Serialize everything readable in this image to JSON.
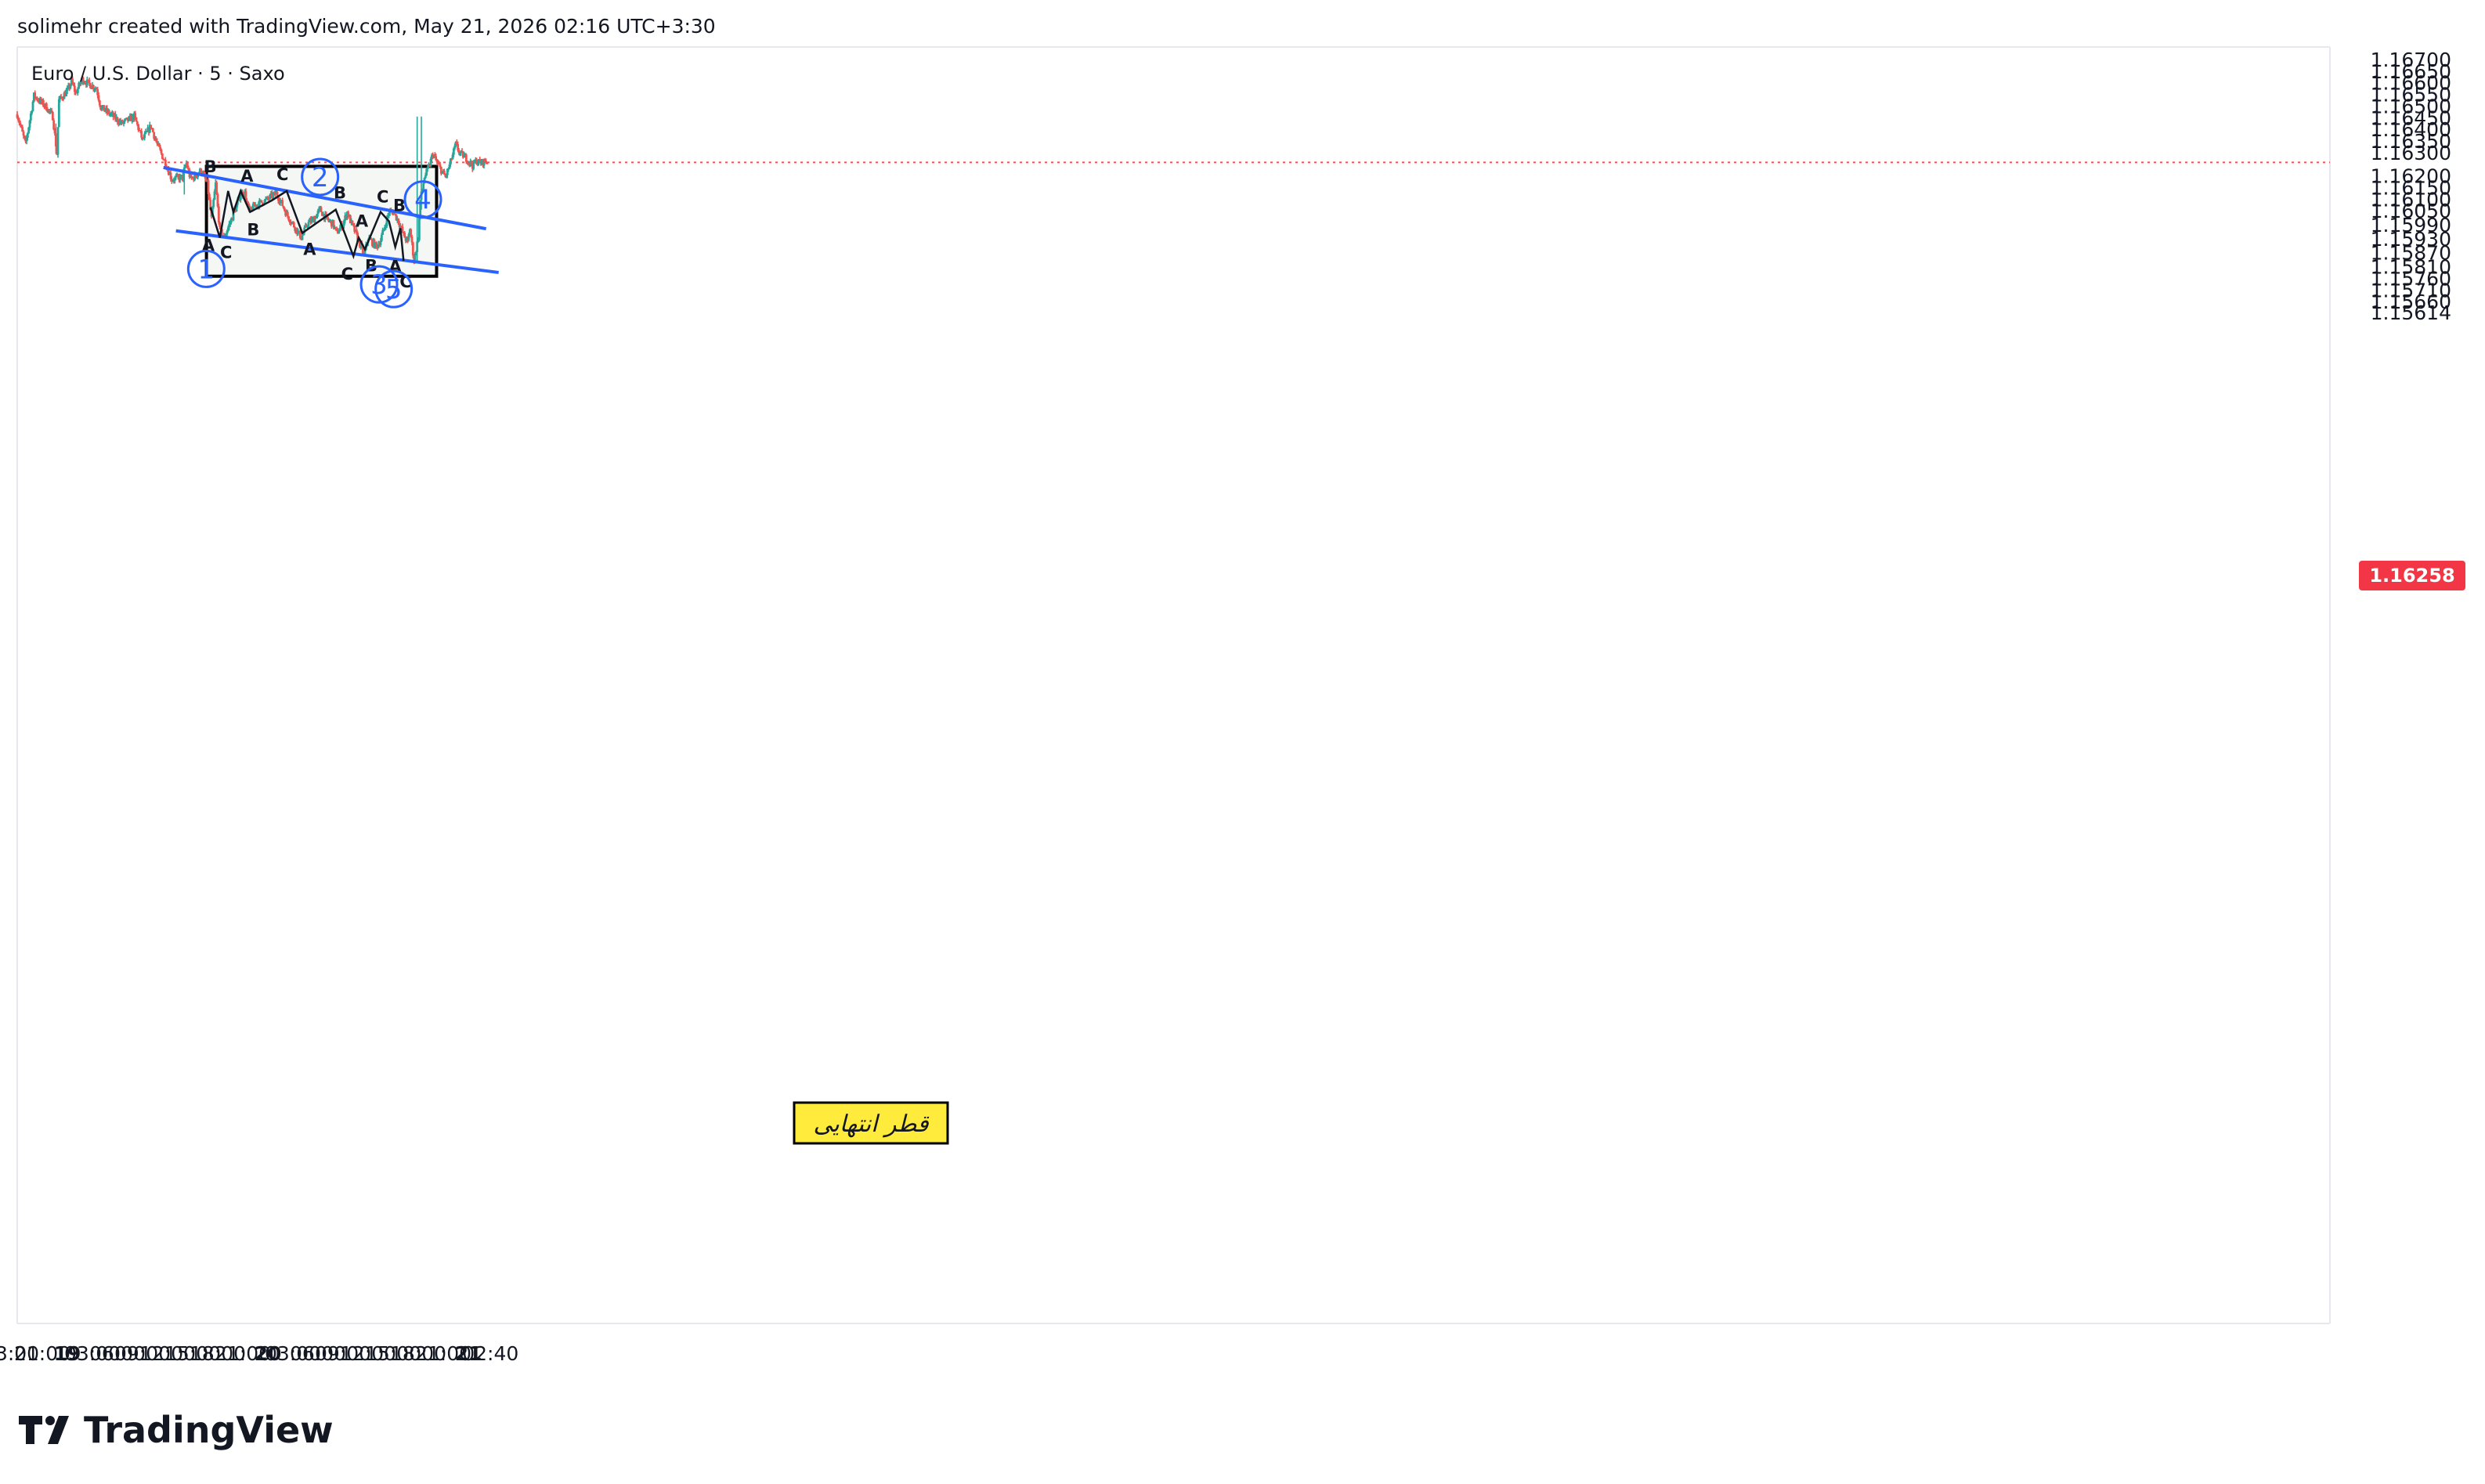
{
  "header": {
    "attribution": "solimehr created with TradingView.com, May 21, 2026 02:16 UTC+3:30"
  },
  "symbol": {
    "title": "Euro / U.S. Dollar · 5 · Saxo"
  },
  "brand": {
    "name": "TradingView"
  },
  "price_label": {
    "value": "1.16258",
    "color": "#f23645"
  },
  "colors": {
    "up": "#26a69a",
    "down": "#ef5350",
    "channel": "#2962ff",
    "box_fill": "#f4f7f3",
    "label_bg": "#ffeb3b"
  },
  "annotation": {
    "box_label": "قطر انتهایی"
  },
  "chart_data": {
    "type": "candlestick",
    "title": "Euro / U.S. Dollar · 5 · Saxo",
    "ylim": [
      1.15614,
      1.167
    ],
    "y_ticks": [
      "1.16700",
      "1.16650",
      "1.16600",
      "1.16550",
      "1.16500",
      "1.16450",
      "1.16400",
      "1.16350",
      "1.16300",
      "1.16258",
      "1.16200",
      "1.16150",
      "1.16100",
      "1.16050",
      "1.15990",
      "1.15930",
      "1.15870",
      "1.15810",
      "1.15760",
      "1.15710",
      "1.15660",
      "1.15614"
    ],
    "x_ticks": [
      {
        "label": "3:00",
        "t": 0,
        "bold": false
      },
      {
        "label": "21:00",
        "t": 12,
        "bold": false
      },
      {
        "label": "19",
        "t": 24,
        "bold": true
      },
      {
        "label": "03:00",
        "t": 36,
        "bold": false
      },
      {
        "label": "06:00",
        "t": 48,
        "bold": false
      },
      {
        "label": "09:00",
        "t": 60,
        "bold": false
      },
      {
        "label": "12:00",
        "t": 72,
        "bold": false
      },
      {
        "label": "15:00",
        "t": 84,
        "bold": false
      },
      {
        "label": "18:00",
        "t": 96,
        "bold": false
      },
      {
        "label": "21:00",
        "t": 108,
        "bold": false
      },
      {
        "label": "20",
        "t": 120,
        "bold": true
      },
      {
        "label": "03:00",
        "t": 132,
        "bold": false
      },
      {
        "label": "06:00",
        "t": 144,
        "bold": false
      },
      {
        "label": "09:00",
        "t": 156,
        "bold": false
      },
      {
        "label": "12:00",
        "t": 168,
        "bold": false
      },
      {
        "label": "15:00",
        "t": 180,
        "bold": false
      },
      {
        "label": "18:00",
        "t": 192,
        "bold": false
      },
      {
        "label": "21:00",
        "t": 204,
        "bold": false
      },
      {
        "label": "21",
        "t": 216,
        "bold": true
      },
      {
        "label": "02:40",
        "t": 226.6,
        "bold": false
      }
    ],
    "path": [
      [
        0,
        1.16465
      ],
      [
        4,
        1.16335
      ],
      [
        8,
        1.16545
      ],
      [
        14,
        1.16495
      ],
      [
        17,
        1.16455
      ],
      [
        19,
        1.16295
      ],
      [
        20,
        1.16525
      ],
      [
        24,
        1.16565
      ],
      [
        26,
        1.16605
      ],
      [
        28,
        1.16555
      ],
      [
        31,
        1.16615
      ],
      [
        38,
        1.16575
      ],
      [
        40,
        1.16495
      ],
      [
        46,
        1.16455
      ],
      [
        50,
        1.16425
      ],
      [
        56,
        1.16455
      ],
      [
        60,
        1.16355
      ],
      [
        64,
        1.16415
      ],
      [
        67,
        1.16335
      ],
      [
        71,
        1.16255
      ],
      [
        74,
        1.16185
      ],
      [
        79,
        1.16195
      ],
      [
        81,
        1.16255
      ],
      [
        83,
        1.16185
      ],
      [
        86,
        1.16205
      ],
      [
        88,
        1.16225
      ],
      [
        91,
        1.16165
      ],
      [
        93,
        1.16015
      ],
      [
        95,
        1.16165
      ],
      [
        97,
        1.15965
      ],
      [
        99,
        1.15935
      ],
      [
        104,
        1.16045
      ],
      [
        107,
        1.16125
      ],
      [
        109,
        1.16125
      ],
      [
        111,
        1.16045
      ],
      [
        114,
        1.16075
      ],
      [
        119,
        1.16095
      ],
      [
        124,
        1.16125
      ],
      [
        127,
        1.16075
      ],
      [
        129,
        1.16035
      ],
      [
        134,
        1.15965
      ],
      [
        136,
        1.15935
      ],
      [
        139,
        1.15995
      ],
      [
        142,
        1.16015
      ],
      [
        145,
        1.16055
      ],
      [
        148,
        1.16015
      ],
      [
        151,
        1.15995
      ],
      [
        153,
        1.15955
      ],
      [
        156,
        1.15995
      ],
      [
        158,
        1.16045
      ],
      [
        160,
        1.15995
      ],
      [
        162,
        1.15955
      ],
      [
        165,
        1.15885
      ],
      [
        166,
        1.15855
      ],
      [
        168,
        1.15935
      ],
      [
        170,
        1.15915
      ],
      [
        172,
        1.15895
      ],
      [
        174,
        1.15925
      ],
      [
        178,
        1.16045
      ],
      [
        180,
        1.16045
      ],
      [
        182,
        1.16015
      ],
      [
        183,
        1.15995
      ],
      [
        185,
        1.15945
      ],
      [
        187,
        1.15915
      ],
      [
        188,
        1.15975
      ],
      [
        190,
        1.15835
      ],
      [
        192,
        1.15935
      ],
      [
        193,
        1.16095
      ],
      [
        195,
        1.16195
      ],
      [
        197,
        1.16235
      ],
      [
        199,
        1.16295
      ],
      [
        201,
        1.16255
      ],
      [
        203,
        1.16225
      ],
      [
        205,
        1.16195
      ],
      [
        207,
        1.16245
      ],
      [
        210,
        1.16335
      ],
      [
        212,
        1.16295
      ],
      [
        214,
        1.16285
      ],
      [
        216,
        1.16265
      ],
      [
        218,
        1.16245
      ],
      [
        220,
        1.16265
      ],
      [
        222,
        1.16255
      ],
      [
        224,
        1.16265
      ],
      [
        225,
        1.16258
      ]
    ],
    "waves": [
      [
        92.5,
        1.16065
      ],
      [
        97,
        1.15935
      ],
      [
        101,
        1.16135
      ],
      [
        103.5,
        1.16045
      ],
      [
        107,
        1.16135
      ],
      [
        111.5,
        1.16045
      ],
      [
        122,
        1.16095
      ],
      [
        129,
        1.16135
      ],
      [
        136.5,
        1.15955
      ],
      [
        152.5,
        1.16055
      ],
      [
        161,
        1.15855
      ],
      [
        163.5,
        1.15935
      ],
      [
        166.5,
        1.15885
      ],
      [
        174,
        1.16045
      ],
      [
        178,
        1.16005
      ],
      [
        181,
        1.15895
      ],
      [
        183.5,
        1.15975
      ],
      [
        185,
        1.15835
      ]
    ],
    "wave_labels": [
      {
        "text": "B",
        "t": 92.5,
        "price": 1.16175,
        "dx": 0,
        "dy": -12
      },
      {
        "text": "A",
        "t": 91.5,
        "price": 1.15965,
        "dx": 0,
        "dy": 26
      },
      {
        "text": "C",
        "t": 97,
        "price": 1.15935,
        "dx": 8,
        "dy": 26
      },
      {
        "text": "A",
        "t": 110,
        "price": 1.16135,
        "dx": 0,
        "dy": -12
      },
      {
        "text": "B",
        "t": 113,
        "price": 1.16045,
        "dx": 0,
        "dy": 30
      },
      {
        "text": "C",
        "t": 127,
        "price": 1.16135,
        "dx": 0,
        "dy": -14
      },
      {
        "text": "A",
        "t": 140,
        "price": 1.15955,
        "dx": 0,
        "dy": 28
      },
      {
        "text": "B",
        "t": 154.5,
        "price": 1.16055,
        "dx": 0,
        "dy": -14
      },
      {
        "text": "C",
        "t": 158,
        "price": 1.15855,
        "dx": 0,
        "dy": 30
      },
      {
        "text": "A",
        "t": 165,
        "price": 1.15935,
        "dx": 0,
        "dy": -14
      },
      {
        "text": "B",
        "t": 169.5,
        "price": 1.15885,
        "dx": 0,
        "dy": 28
      },
      {
        "text": "C",
        "t": 175,
        "price": 1.16045,
        "dx": 0,
        "dy": -12
      },
      {
        "text": "B",
        "t": 183,
        "price": 1.15975,
        "dx": 0,
        "dy": -22
      },
      {
        "text": "A",
        "t": 181,
        "price": 1.15895,
        "dx": 0,
        "dy": 32
      },
      {
        "text": "C",
        "t": 186,
        "price": 1.15835,
        "dx": 0,
        "dy": 34
      }
    ],
    "wave_circles": [
      {
        "label": "1",
        "t": 98,
        "price": 1.15935,
        "dx": -20,
        "dy": 40
      },
      {
        "label": "2",
        "t": 130,
        "price": 1.16135,
        "dx": 40,
        "dy": -18
      },
      {
        "label": "3",
        "t": 162,
        "price": 1.15855,
        "dx": 30,
        "dy": 36
      },
      {
        "label": "4",
        "t": 180,
        "price": 1.16045,
        "dx": 38,
        "dy": -16
      },
      {
        "label": "5",
        "t": 184,
        "price": 1.15835,
        "dx": -10,
        "dy": 36
      }
    ],
    "channel": [
      {
        "name": "upper",
        "t1": 70,
        "p1": 1.16236,
        "t2": 224.5,
        "p2": 1.15973
      },
      {
        "name": "lower",
        "t1": 76,
        "p1": 1.15964,
        "t2": 230.5,
        "p2": 1.15785
      }
    ],
    "box": {
      "t1": 90.6,
      "t2": 200.8,
      "p1": 1.16241,
      "p2": 1.15769
    },
    "price_line": 1.16258
  }
}
